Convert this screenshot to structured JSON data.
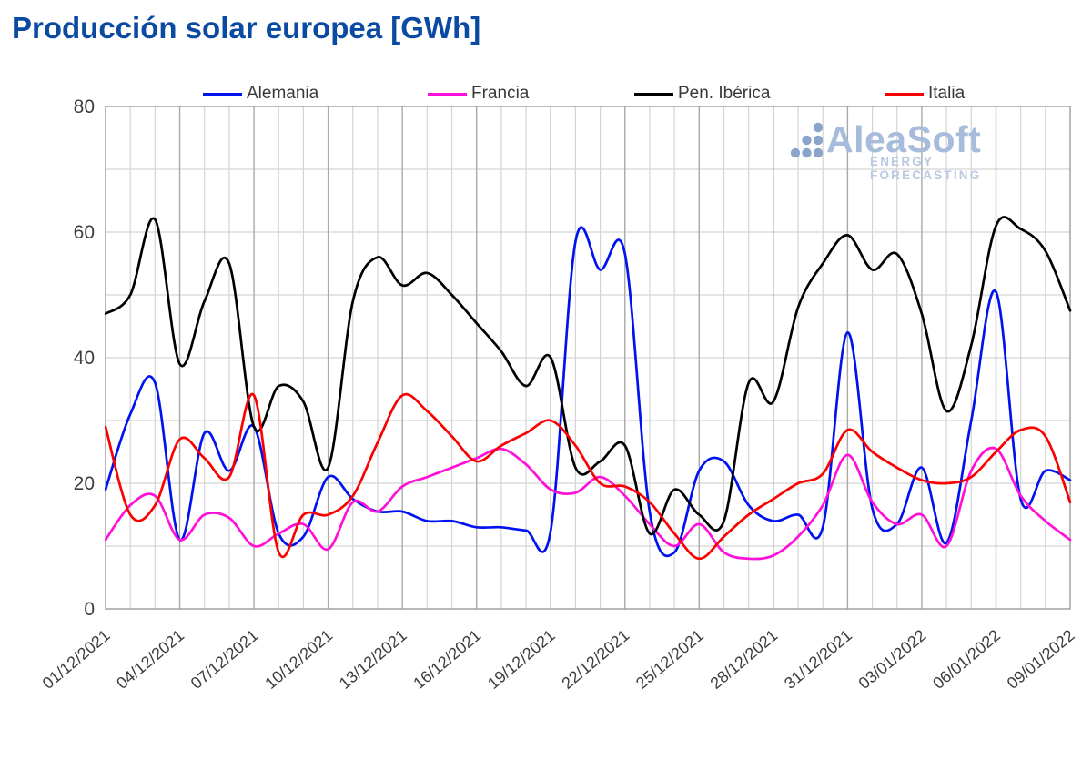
{
  "title": "Producción solar europea [GWh]",
  "watermark": {
    "brand": "AleaSoft",
    "tagline": "ENERGY FORECASTING",
    "brand_color": "#a7bbda",
    "tagline_color": "#b9c9e3",
    "dots_color": "#8aa5cc"
  },
  "styles": {
    "title_color": "#0b4aa2",
    "axis_text_color": "#3d3d3d",
    "grid_minor_color": "#d4d4d4",
    "grid_major_color": "#a9a9a9",
    "frame_color": "#9b9b9b",
    "background": "#ffffff"
  },
  "chart_data": {
    "type": "line",
    "title": "Producción solar europea [GWh]",
    "xlabel": "",
    "ylabel": "",
    "ylim": [
      0,
      80
    ],
    "y_ticks": [
      0,
      20,
      40,
      60,
      80
    ],
    "y_minor_step": 10,
    "x_label_every": 3,
    "grid": true,
    "legend_position": "top",
    "x": [
      "01/12/2021",
      "02/12/2021",
      "03/12/2021",
      "04/12/2021",
      "05/12/2021",
      "06/12/2021",
      "07/12/2021",
      "08/12/2021",
      "09/12/2021",
      "10/12/2021",
      "11/12/2021",
      "12/12/2021",
      "13/12/2021",
      "14/12/2021",
      "15/12/2021",
      "16/12/2021",
      "17/12/2021",
      "18/12/2021",
      "19/12/2021",
      "20/12/2021",
      "21/12/2021",
      "22/12/2021",
      "23/12/2021",
      "24/12/2021",
      "25/12/2021",
      "26/12/2021",
      "27/12/2021",
      "28/12/2021",
      "29/12/2021",
      "30/12/2021",
      "31/12/2021",
      "01/01/2022",
      "02/01/2022",
      "03/01/2022",
      "04/01/2022",
      "05/01/2022",
      "06/01/2022",
      "07/01/2022",
      "08/01/2022",
      "09/01/2022"
    ],
    "series": [
      {
        "name": "Alemania",
        "color": "#0012f0",
        "values": [
          19,
          31,
          36,
          11,
          28,
          22,
          29,
          12,
          11.5,
          21,
          17.5,
          15.5,
          15.5,
          14,
          14,
          13,
          13,
          12.5,
          12.5,
          58.5,
          54,
          56.5,
          15.5,
          9,
          22,
          23.5,
          16.5,
          14,
          15,
          13,
          44,
          16,
          13.5,
          22.5,
          10.5,
          30,
          50.5,
          17.5,
          22,
          20.5
        ]
      },
      {
        "name": "Francia",
        "color": "#ff10d8",
        "values": [
          11,
          16.5,
          18,
          11,
          15,
          14.5,
          10,
          12,
          13.5,
          9.5,
          17,
          15.5,
          19.5,
          21,
          22.5,
          24,
          25.5,
          23,
          19,
          18.5,
          21,
          18,
          13.5,
          10,
          13.5,
          9,
          8,
          8.5,
          11.5,
          16.5,
          24.5,
          17,
          13.5,
          15,
          10,
          22,
          25.5,
          18,
          14,
          11
        ]
      },
      {
        "name": "Pen. Ibérica",
        "color": "#000000",
        "values": [
          47,
          50,
          62,
          39,
          49,
          55,
          29,
          35.5,
          33,
          22.5,
          49,
          56,
          51.5,
          53.5,
          50,
          45.5,
          41,
          35.5,
          40,
          22.5,
          23.5,
          26,
          12,
          19,
          15,
          14,
          36,
          33,
          48,
          55,
          59.5,
          54,
          56.5,
          47,
          31.5,
          42,
          61,
          60.5,
          57,
          47.5
        ]
      },
      {
        "name": "Italia",
        "color": "#fa0000",
        "values": [
          29,
          15,
          16.5,
          27,
          24,
          21,
          34,
          9,
          15,
          15,
          18,
          26.5,
          34,
          31.5,
          27.5,
          23.5,
          26,
          28,
          30,
          26,
          20,
          19.5,
          17,
          12,
          8,
          11.5,
          15,
          17.5,
          20,
          21.5,
          28.5,
          25,
          22.5,
          20.5,
          20,
          21,
          25,
          28.5,
          27.5,
          17
        ]
      }
    ]
  }
}
